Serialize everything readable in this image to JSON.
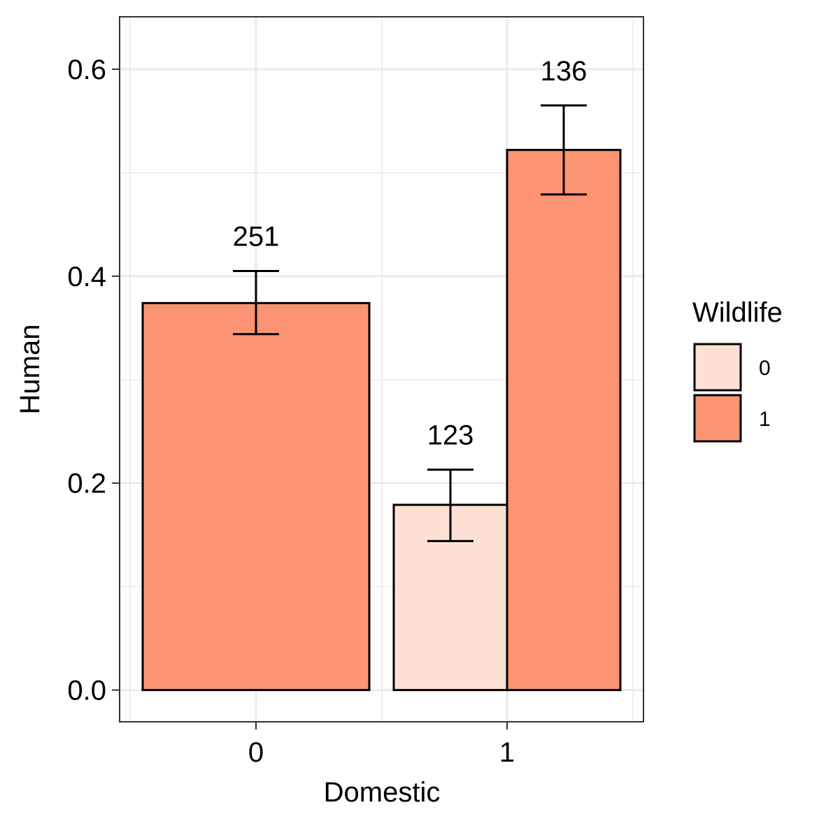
{
  "chart_data": {
    "type": "bar",
    "xlabel": "Domestic",
    "ylabel": "Human",
    "categories": [
      "0",
      "1"
    ],
    "ylim": [
      -0.03,
      0.65
    ],
    "yticks": [
      "0.0",
      "0.2",
      "0.4",
      "0.6"
    ],
    "ytick_values": [
      0.0,
      0.2,
      0.4,
      0.6
    ],
    "legend": {
      "title": "Wildlife",
      "position": "right",
      "entries": [
        {
          "label": "0",
          "color": "#FCE0D3"
        },
        {
          "label": "1",
          "color": "#FC9473"
        }
      ]
    },
    "bars": [
      {
        "domestic": "0",
        "wildlife": "1",
        "value": 0.374,
        "err_low": 0.344,
        "err_high": 0.405,
        "n": "251"
      },
      {
        "domestic": "1",
        "wildlife": "0",
        "value": 0.179,
        "err_low": 0.144,
        "err_high": 0.213,
        "n": "123"
      },
      {
        "domestic": "1",
        "wildlife": "1",
        "value": 0.522,
        "err_low": 0.479,
        "err_high": 0.565,
        "n": "136"
      }
    ],
    "grid": true,
    "colors": {
      "grid": "#EBEBEB",
      "panel_border": "#333333",
      "bar_outline": "#000000"
    }
  }
}
